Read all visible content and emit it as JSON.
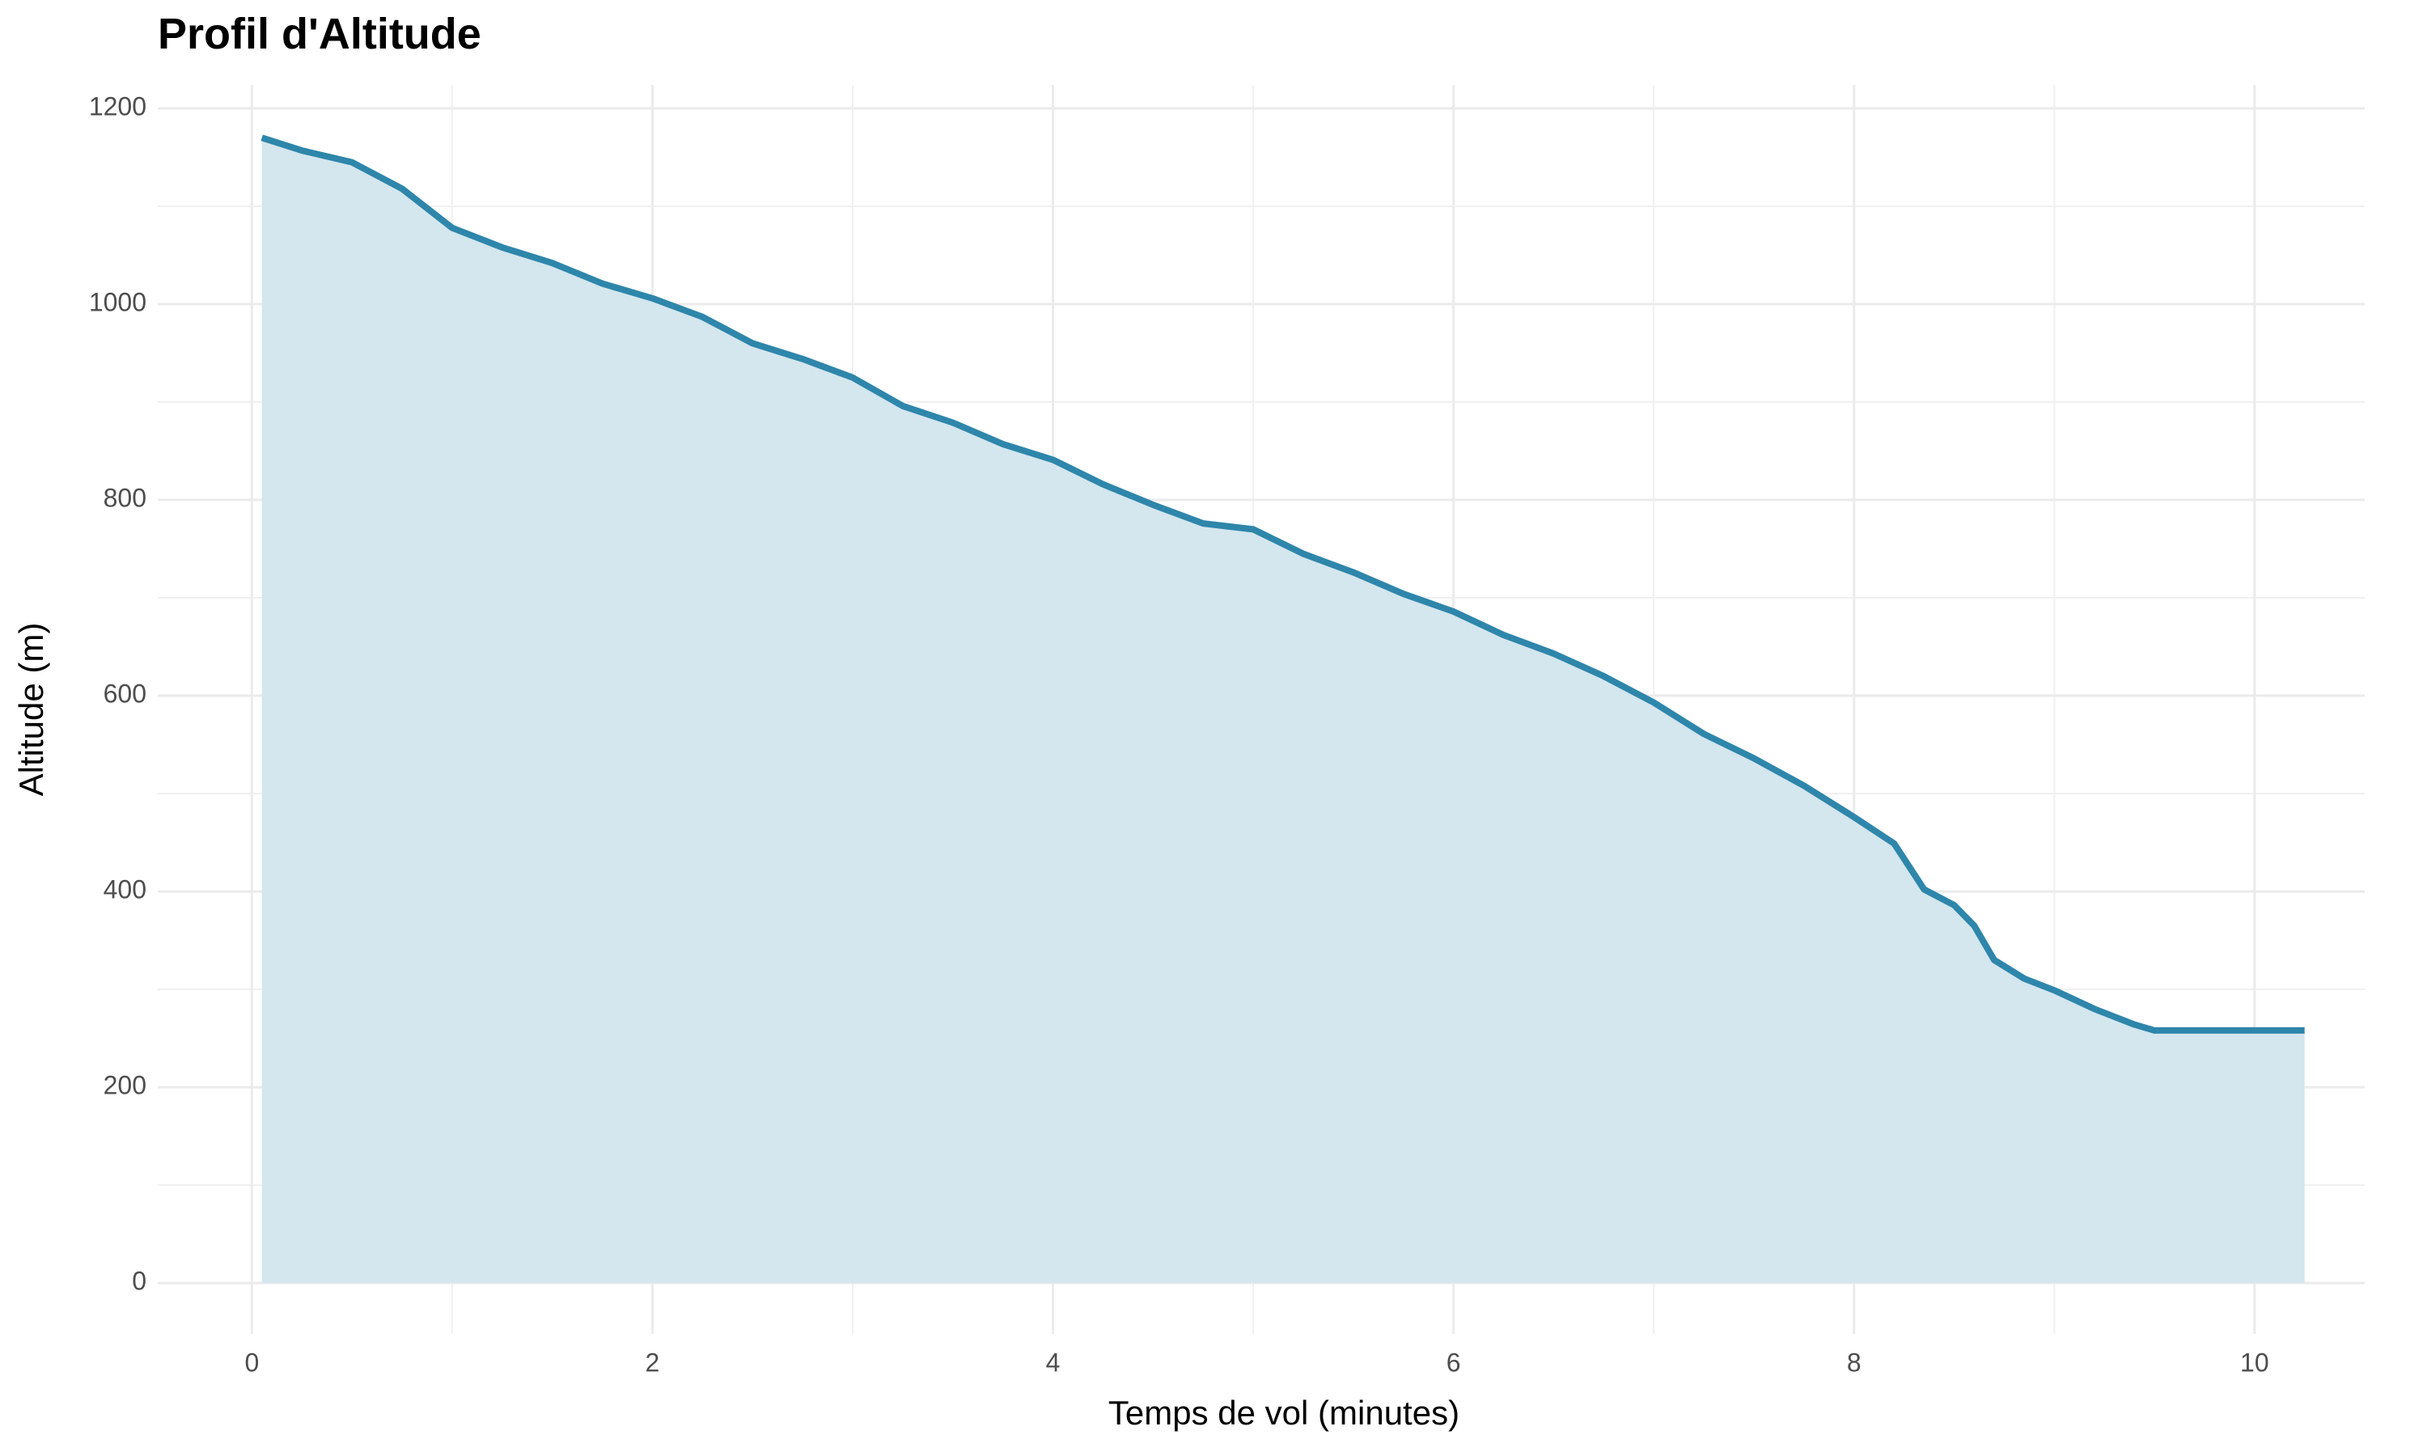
{
  "chart_data": {
    "type": "area",
    "title": "Profil d'Altitude",
    "x_label": "Temps de vol (minutes)",
    "y_label": "Altitude (m)",
    "x": [
      0.05,
      0.25,
      0.5,
      0.75,
      1.0,
      1.25,
      1.5,
      1.75,
      2.0,
      2.25,
      2.5,
      2.75,
      3.0,
      3.25,
      3.5,
      3.75,
      4.0,
      4.25,
      4.5,
      4.75,
      5.0,
      5.25,
      5.5,
      5.75,
      6.0,
      6.25,
      6.5,
      6.75,
      7.0,
      7.25,
      7.5,
      7.75,
      8.0,
      8.2,
      8.35,
      8.5,
      8.6,
      8.7,
      8.85,
      9.0,
      9.2,
      9.4,
      9.5,
      10.25
    ],
    "values": [
      1170,
      1157,
      1145,
      1118,
      1078,
      1058,
      1042,
      1021,
      1006,
      987,
      960,
      944,
      925,
      896,
      879,
      857,
      841,
      816,
      795,
      776,
      770,
      745,
      726,
      704,
      686,
      662,
      643,
      620,
      593,
      561,
      536,
      508,
      476,
      449,
      402,
      386,
      365,
      330,
      311,
      299,
      280,
      264,
      258,
      258
    ],
    "color": "#2e86ab",
    "fill_color": "#d4e6ee",
    "xlim": [
      -0.47,
      10.55
    ],
    "xticks": [
      0,
      2,
      4,
      6,
      8,
      10
    ],
    "ylim": [
      -52,
      1224
    ],
    "yticks": [
      0,
      200,
      400,
      600,
      800,
      1000,
      1200
    ],
    "grid": true,
    "minor_grid": true
  }
}
